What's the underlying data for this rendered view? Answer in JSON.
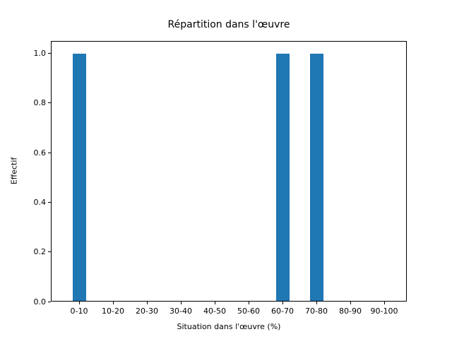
{
  "chart_data": {
    "type": "bar",
    "title": "Répartition dans l'œuvre",
    "xlabel": "Situation dans l'œuvre (%)",
    "ylabel": "Effectif",
    "categories": [
      "0-10",
      "10-20",
      "20-30",
      "30-40",
      "40-50",
      "50-60",
      "60-70",
      "70-80",
      "80-90",
      "90-100"
    ],
    "values": [
      1,
      0,
      0,
      0,
      0,
      0,
      1,
      1,
      0,
      0
    ],
    "ytick_labels": [
      "0.0",
      "0.2",
      "0.4",
      "0.6",
      "0.8",
      "1.0"
    ],
    "ylim": [
      0,
      1.05
    ],
    "bar_color": "#1f77b4",
    "axis_color": "#000000",
    "background_color": "#ffffff",
    "grid": false,
    "legend": null
  }
}
